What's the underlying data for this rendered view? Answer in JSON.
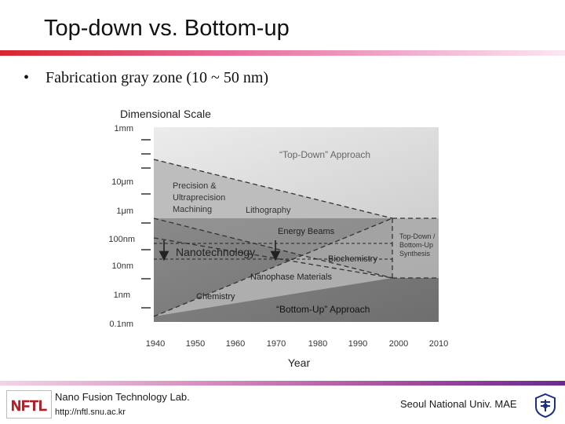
{
  "slide": {
    "title": "Top-down vs. Bottom-up",
    "bullet": "Fabrication gray zone (10 ~ 50 nm)"
  },
  "diagram": {
    "scale_title": "Dimensional Scale",
    "y_ticks": [
      "1mm",
      "10μm",
      "1μm",
      "100nm",
      "10nm",
      "1nm",
      "0.1nm"
    ],
    "x_ticks": [
      "1940",
      "1950",
      "1960",
      "1970",
      "1980",
      "1990",
      "2000",
      "2010"
    ],
    "x_axis_title": "Year",
    "labels": {
      "top_down": "“Top-Down” Approach",
      "precision_1": "Precision &",
      "precision_2": "Ultraprecision",
      "precision_3": "Machining",
      "lithography": "Lithography",
      "energy_beams": "Energy Beams",
      "nanotechnology": "Nanotechnology",
      "biochemistry": "Biochemistry",
      "nanophase": "Nanophase Materials",
      "chemistry": "Chemistry",
      "bottom_up": "“Bottom-Up” Approach",
      "synth_1": "Top-Down /",
      "synth_2": "Bottom-Up",
      "synth_3": "Synthesis"
    },
    "colors": {
      "light_region": "#e6e6e6",
      "dark_region": "#787878",
      "mid_region": "#b4b4b4"
    }
  },
  "footer": {
    "lab_logo_text": "NFTL",
    "lab_name": "Nano Fusion Technology Lab.",
    "lab_url": "http://nftl.snu.ac.kr",
    "university": "Seoul National Univ. MAE"
  }
}
